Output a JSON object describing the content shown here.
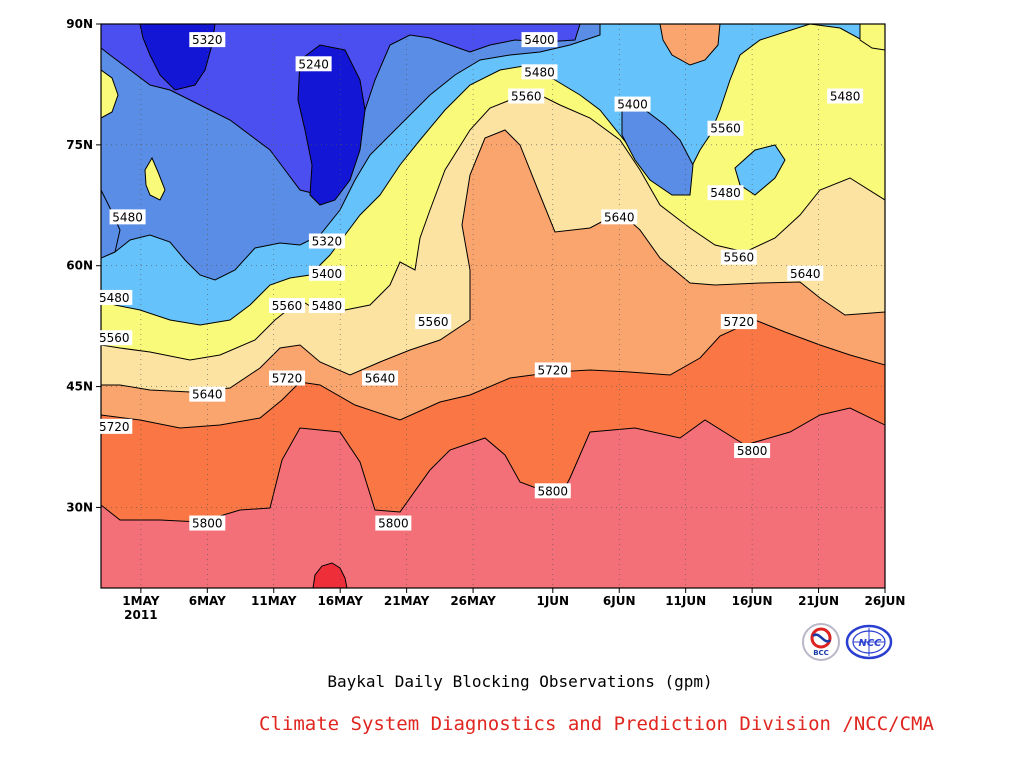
{
  "chart_data": {
    "type": "heatmap",
    "title": "Baykal Daily Blocking Observations (gpm)",
    "x_ticks": [
      "1MAY",
      "6MAY",
      "11MAY",
      "16MAY",
      "21MAY",
      "26MAY",
      "1JUN",
      "6JUN",
      "11JUN",
      "16JUN",
      "21JUN",
      "26JUN"
    ],
    "x_year_label": "2011",
    "y_ticks": [
      "30N",
      "45N",
      "60N",
      "75N",
      "90N"
    ],
    "xlim": [
      "2011-04-28",
      "2011-06-26"
    ],
    "ylim": [
      20,
      90
    ],
    "grid": true,
    "contour_levels": [
      5240,
      5320,
      5400,
      5480,
      5560,
      5640,
      5720,
      5800,
      5880
    ],
    "level_colors": {
      "below_5240": "#1416d6",
      "5240_5320": "#4b4ff0",
      "5320_5400": "#5a8ee6",
      "5400_5480": "#66c2fa",
      "5480_5560": "#fafa7a",
      "5560_5640": "#fce3a2",
      "5640_5720": "#fba56e",
      "5720_5800": "#fa7745",
      "5800_5880": "#f47078",
      "above_5880": "#ee2f3a"
    },
    "contour_labels": [
      {
        "value": "5320",
        "date": "2011-05-06",
        "lat": 88
      },
      {
        "value": "5240",
        "date": "2011-05-14",
        "lat": 85
      },
      {
        "value": "5400",
        "date": "2011-05-31",
        "lat": 88
      },
      {
        "value": "5480",
        "date": "2011-05-31",
        "lat": 84
      },
      {
        "value": "5560",
        "date": "2011-05-30",
        "lat": 81
      },
      {
        "value": "5400",
        "date": "2011-06-07",
        "lat": 80
      },
      {
        "value": "5560",
        "date": "2011-06-14",
        "lat": 77
      },
      {
        "value": "5480",
        "date": "2011-06-23",
        "lat": 81
      },
      {
        "value": "5480",
        "date": "2011-04-30",
        "lat": 66
      },
      {
        "value": "5480",
        "date": "2011-06-14",
        "lat": 69
      },
      {
        "value": "5320",
        "date": "2011-05-15",
        "lat": 63
      },
      {
        "value": "5640",
        "date": "2011-06-06",
        "lat": 66
      },
      {
        "value": "5400",
        "date": "2011-05-15",
        "lat": 59
      },
      {
        "value": "5560",
        "date": "2011-06-15",
        "lat": 61
      },
      {
        "value": "5640",
        "date": "2011-06-20",
        "lat": 59
      },
      {
        "value": "5480",
        "date": "2011-04-29",
        "lat": 56
      },
      {
        "value": "5560",
        "date": "2011-05-12",
        "lat": 55
      },
      {
        "value": "5480",
        "date": "2011-05-15",
        "lat": 55
      },
      {
        "value": "5560",
        "date": "2011-05-23",
        "lat": 53
      },
      {
        "value": "5720",
        "date": "2011-06-15",
        "lat": 53
      },
      {
        "value": "5560",
        "date": "2011-04-29",
        "lat": 51
      },
      {
        "value": "5720",
        "date": "2011-05-12",
        "lat": 46
      },
      {
        "value": "5640",
        "date": "2011-05-19",
        "lat": 46
      },
      {
        "value": "5720",
        "date": "2011-06-01",
        "lat": 47
      },
      {
        "value": "5640",
        "date": "2011-05-06",
        "lat": 44
      },
      {
        "value": "5720",
        "date": "2011-04-29",
        "lat": 40
      },
      {
        "value": "5800",
        "date": "2011-06-16",
        "lat": 37
      },
      {
        "value": "5800",
        "date": "2011-06-01",
        "lat": 32
      },
      {
        "value": "5800",
        "date": "2011-05-06",
        "lat": 28
      },
      {
        "value": "5800",
        "date": "2011-05-20",
        "lat": 28
      }
    ]
  },
  "footer": {
    "credit": "Climate System Diagnostics and Prediction Division /NCC/CMA"
  },
  "logos": {
    "bcc": {
      "text": "BCC",
      "icon": "bcc-logo-icon"
    },
    "ncc": {
      "text": "NCC",
      "icon": "ncc-logo-icon"
    }
  }
}
